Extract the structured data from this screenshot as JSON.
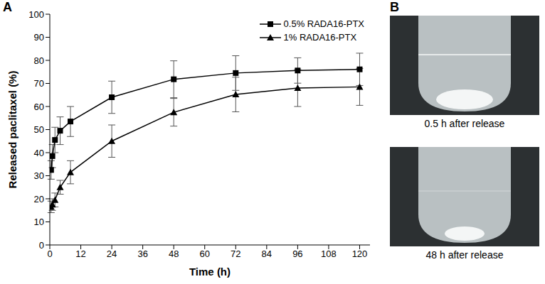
{
  "chart_data": {
    "type": "line",
    "panel": "A",
    "x_label": "Time (h)",
    "y_label": "Released paclitaxel (%)",
    "x": [
      0.5,
      1,
      2,
      4,
      8,
      24,
      48,
      72,
      96,
      120
    ],
    "series": [
      {
        "name": "0.5% RADA16-PTX",
        "color": "#000000",
        "marker": "square",
        "values": [
          32.5,
          38.5,
          45.5,
          49.5,
          53.5,
          64,
          71.8,
          74.5,
          75.6,
          76.1
        ],
        "error": [
          4,
          5,
          5.5,
          6,
          6.5,
          7,
          8,
          7.5,
          5.5,
          7
        ]
      },
      {
        "name": "1% RADA16-PTX",
        "color": "#000000",
        "marker": "triangle",
        "values": [
          16.5,
          17.5,
          19.5,
          25,
          31.5,
          45,
          57.5,
          65.2,
          68,
          68.5
        ],
        "error": [
          2.5,
          2.5,
          3,
          3,
          5,
          7,
          6,
          7.5,
          8,
          8
        ]
      }
    ],
    "xlim": [
      0,
      124
    ],
    "xticks": [
      0,
      12,
      24,
      36,
      48,
      60,
      72,
      84,
      96,
      108,
      120
    ],
    "ylim": [
      0,
      100
    ],
    "yticks": [
      0,
      10,
      20,
      30,
      40,
      50,
      60,
      70,
      80,
      90,
      100
    ],
    "grid": false,
    "legend": "upper right"
  },
  "photos": {
    "panel": "B",
    "captions": [
      "0.5 h after release",
      "48 h after release"
    ]
  }
}
